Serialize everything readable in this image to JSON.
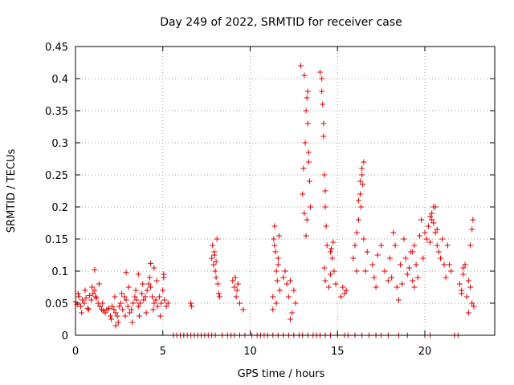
{
  "chart_data": {
    "type": "scatter",
    "title": "Day 249 of 2022, SRMTID for receiver case",
    "xlabel": "GPS time / hours",
    "ylabel": "SRMTID / TECUs",
    "xlim": [
      0,
      24
    ],
    "ylim": [
      0,
      0.45
    ],
    "xticks": [
      0,
      5,
      10,
      15,
      20
    ],
    "xtick_labels": [
      "0",
      "5",
      "10",
      "15",
      "20"
    ],
    "yticks": [
      0,
      0.05,
      0.1,
      0.15,
      0.2,
      0.25,
      0.3,
      0.35,
      0.4,
      0.45
    ],
    "ytick_labels": [
      "0",
      "0.05",
      "0.1",
      "0.15",
      "0.2",
      "0.25",
      "0.3",
      "0.35",
      "0.4",
      "0.45"
    ],
    "grid": true,
    "marker": "+",
    "color": "#e00000",
    "series": [
      {
        "name": "SRMTID",
        "x": [
          0.0,
          0.1,
          0.2,
          0.3,
          0.4,
          0.5,
          0.6,
          0.7,
          0.8,
          0.9,
          1.0,
          1.1,
          1.2,
          1.3,
          1.4,
          1.5,
          1.6,
          1.7,
          1.8,
          1.9,
          2.0,
          2.1,
          2.2,
          2.3,
          2.4,
          2.5,
          2.6,
          2.7,
          2.8,
          2.9,
          3.0,
          3.1,
          3.2,
          3.3,
          3.4,
          3.5,
          3.6,
          3.7,
          3.8,
          3.9,
          4.0,
          4.1,
          4.2,
          4.3,
          4.4,
          4.5,
          4.6,
          4.7,
          4.8,
          4.9,
          5.0,
          5.1,
          5.2,
          5.3,
          0.15,
          0.35,
          0.55,
          0.75,
          0.95,
          1.15,
          1.35,
          1.55,
          2.05,
          2.25,
          2.45,
          2.65,
          2.85,
          3.05,
          3.25,
          3.45,
          3.65,
          3.85,
          4.05,
          4.25,
          4.45,
          4.65,
          4.85,
          5.05,
          1.1,
          2.9,
          4.3,
          4.5,
          3.6,
          2.3,
          5.05,
          6.6,
          6.65,
          7.8,
          7.85,
          7.9,
          7.95,
          8.0,
          8.05,
          8.1,
          8.15,
          8.2,
          8.25,
          7.95,
          8.05,
          9.0,
          9.1,
          9.2,
          9.3,
          9.4,
          9.15,
          9.25,
          9.6,
          11.3,
          11.35,
          11.4,
          11.45,
          11.5,
          11.55,
          11.6,
          11.65,
          11.3,
          11.5,
          11.4,
          11.6,
          11.7,
          11.9,
          12.0,
          12.1,
          12.2,
          12.3,
          12.4,
          12.5,
          12.3,
          12.6,
          12.9,
          13.0,
          13.05,
          13.1,
          13.15,
          13.2,
          13.25,
          13.3,
          13.35,
          13.4,
          13.2,
          13.3,
          13.25,
          13.1,
          13.35,
          13.45,
          14.0,
          14.1,
          14.15,
          14.2,
          14.25,
          14.3,
          14.35,
          14.4,
          14.2,
          14.3,
          14.1,
          14.25,
          14.3,
          14.5,
          14.6,
          14.7,
          14.8,
          14.9,
          14.6,
          14.75,
          14.65,
          15.2,
          15.3,
          15.4,
          15.5,
          15.9,
          16.0,
          16.1,
          16.2,
          16.3,
          16.4,
          16.5,
          16.2,
          16.3,
          16.35,
          16.4,
          16.45,
          16.1,
          16.5,
          16.6,
          16.7,
          17.0,
          17.1,
          17.2,
          17.3,
          17.5,
          17.7,
          17.9,
          18.0,
          18.1,
          18.2,
          18.3,
          18.4,
          18.5,
          18.6,
          18.7,
          18.8,
          18.9,
          19.0,
          19.1,
          19.2,
          19.3,
          19.4,
          19.5,
          19.6,
          19.7,
          19.8,
          19.9,
          20.0,
          20.1,
          20.2,
          20.3,
          20.4,
          20.5,
          20.6,
          20.7,
          20.8,
          20.9,
          21.0,
          21.1,
          21.2,
          21.3,
          21.4,
          21.5,
          20.3,
          20.5,
          20.6,
          20.4,
          20.7,
          19.3,
          19.4,
          22.0,
          22.1,
          22.2,
          22.3,
          22.4,
          22.5,
          22.6,
          22.7,
          22.8,
          22.2,
          22.6,
          22.7,
          22.75,
          22.1,
          22.5,
          5.6,
          5.8,
          6.0,
          6.2,
          6.4,
          6.6,
          6.8,
          7.0,
          7.2,
          7.4,
          7.6,
          7.8,
          8.0,
          8.4,
          8.7,
          8.9,
          9.1,
          9.4,
          9.7,
          10.1,
          10.4,
          10.6,
          10.8,
          11.0,
          11.3,
          11.6,
          11.9,
          12.2,
          12.5,
          12.8,
          13.0,
          13.3,
          13.6,
          13.8,
          14.0,
          14.3,
          14.6,
          15.0,
          15.4,
          15.6,
          16.0,
          16.4,
          16.8,
          17.2,
          17.5,
          17.9,
          18.5,
          19.0,
          20.0,
          20.3,
          21.7,
          21.9
        ],
        "y": [
          0.052,
          0.048,
          0.06,
          0.045,
          0.055,
          0.05,
          0.058,
          0.042,
          0.062,
          0.055,
          0.065,
          0.07,
          0.058,
          0.05,
          0.045,
          0.04,
          0.038,
          0.035,
          0.04,
          0.042,
          0.03,
          0.045,
          0.04,
          0.035,
          0.03,
          0.045,
          0.05,
          0.04,
          0.06,
          0.055,
          0.045,
          0.035,
          0.04,
          0.05,
          0.06,
          0.055,
          0.045,
          0.05,
          0.065,
          0.055,
          0.06,
          0.07,
          0.08,
          0.075,
          0.06,
          0.05,
          0.055,
          0.045,
          0.06,
          0.05,
          0.07,
          0.055,
          0.045,
          0.05,
          0.065,
          0.035,
          0.07,
          0.04,
          0.075,
          0.06,
          0.08,
          0.05,
          0.025,
          0.06,
          0.02,
          0.065,
          0.03,
          0.075,
          0.02,
          0.07,
          0.03,
          0.08,
          0.035,
          0.09,
          0.04,
          0.085,
          0.03,
          0.09,
          0.102,
          0.098,
          0.112,
          0.105,
          0.095,
          0.015,
          0.095,
          0.05,
          0.045,
          0.12,
          0.14,
          0.11,
          0.13,
          0.1,
          0.09,
          0.15,
          0.08,
          0.065,
          0.06,
          0.125,
          0.115,
          0.085,
          0.075,
          0.06,
          0.08,
          0.05,
          0.09,
          0.07,
          0.04,
          0.06,
          0.15,
          0.17,
          0.13,
          0.1,
          0.085,
          0.12,
          0.155,
          0.04,
          0.05,
          0.14,
          0.11,
          0.07,
          0.09,
          0.1,
          0.08,
          0.06,
          0.085,
          0.035,
          0.07,
          0.025,
          0.05,
          0.42,
          0.22,
          0.26,
          0.19,
          0.3,
          0.35,
          0.37,
          0.38,
          0.27,
          0.24,
          0.155,
          0.33,
          0.18,
          0.405,
          0.285,
          0.2,
          0.41,
          0.4,
          0.36,
          0.31,
          0.25,
          0.2,
          0.17,
          0.14,
          0.33,
          0.225,
          0.38,
          0.105,
          0.085,
          0.075,
          0.13,
          0.12,
          0.1,
          0.08,
          0.095,
          0.145,
          0.135,
          0.06,
          0.075,
          0.065,
          0.07,
          0.12,
          0.14,
          0.16,
          0.18,
          0.22,
          0.25,
          0.27,
          0.21,
          0.24,
          0.2,
          0.26,
          0.235,
          0.1,
          0.15,
          0.1,
          0.13,
          0.11,
          0.09,
          0.075,
          0.125,
          0.14,
          0.1,
          0.085,
          0.12,
          0.09,
          0.16,
          0.14,
          0.075,
          0.055,
          0.11,
          0.08,
          0.15,
          0.12,
          0.095,
          0.105,
          0.13,
          0.085,
          0.14,
          0.11,
          0.09,
          0.155,
          0.18,
          0.12,
          0.16,
          0.15,
          0.17,
          0.185,
          0.19,
          0.175,
          0.2,
          0.14,
          0.13,
          0.12,
          0.15,
          0.11,
          0.09,
          0.14,
          0.11,
          0.1,
          0.145,
          0.2,
          0.16,
          0.18,
          0.165,
          0.13,
          0.075,
          0.08,
          0.07,
          0.095,
          0.11,
          0.06,
          0.085,
          0.075,
          0.05,
          0.045,
          0.105,
          0.14,
          0.165,
          0.18,
          0.065,
          0.035,
          0,
          0,
          0,
          0,
          0,
          0,
          0,
          0,
          0,
          0,
          0,
          0,
          0,
          0,
          0,
          0,
          0,
          0,
          0,
          0,
          0,
          0,
          0,
          0,
          0,
          0,
          0,
          0,
          0,
          0,
          0,
          0,
          0,
          0,
          0,
          0,
          0,
          0,
          0,
          0,
          0,
          0,
          0,
          0,
          0,
          0,
          0,
          0,
          0,
          0,
          0,
          0
        ]
      }
    ]
  }
}
